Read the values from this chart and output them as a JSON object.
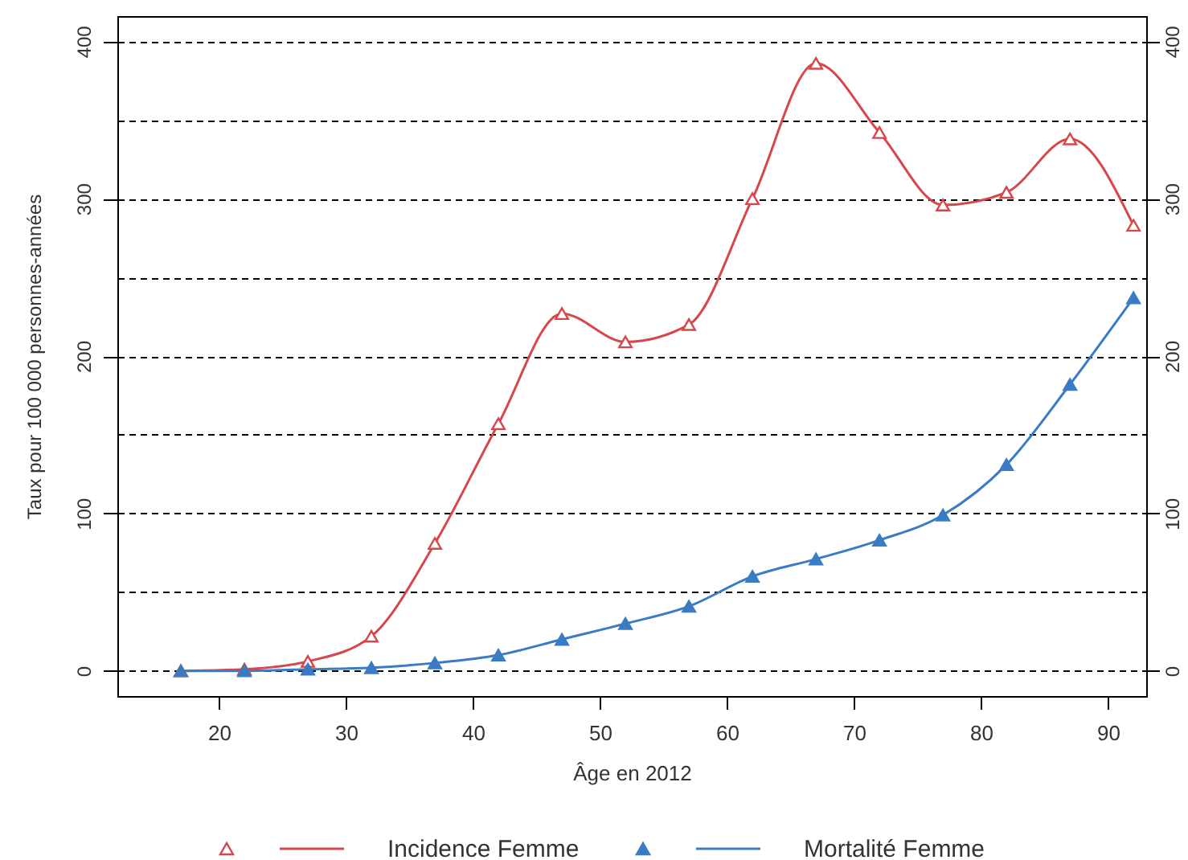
{
  "chart_data": {
    "type": "line",
    "xlabel": "Âge en 2012",
    "ylabel": "Taux pour 100 000 personnes-années",
    "x": [
      17,
      22,
      27,
      32,
      37,
      42,
      47,
      52,
      57,
      62,
      67,
      72,
      77,
      82,
      87,
      92
    ],
    "series": [
      {
        "name": "Incidence Femme",
        "color": "#d6474b",
        "values": [
          0,
          1,
          6,
          22,
          81,
          157,
          227,
          209,
          220,
          300,
          386,
          342,
          296,
          304,
          338,
          283
        ]
      },
      {
        "name": "Mortalité Femme",
        "color": "#3a7cc3",
        "values": [
          0,
          0,
          1,
          2,
          5,
          10,
          20,
          30,
          41,
          60,
          71,
          83,
          99,
          131,
          182,
          237
        ]
      }
    ],
    "xlim": [
      12,
      93
    ],
    "xticks": [
      20,
      30,
      40,
      50,
      60,
      70,
      80,
      90
    ],
    "ylim": [
      -16,
      416
    ],
    "yticks": [
      0,
      {
        "value": 50,
        "label": null
      },
      100,
      {
        "value": 150,
        "label": null
      },
      200,
      {
        "value": 250,
        "label": null
      },
      300,
      {
        "value": 350,
        "label": null
      },
      400
    ],
    "y2lim": [
      -16,
      416
    ],
    "y2ticks": [
      0,
      100,
      200,
      300,
      400
    ],
    "grid": "y",
    "legend": "bottom",
    "marker": "triangle"
  }
}
